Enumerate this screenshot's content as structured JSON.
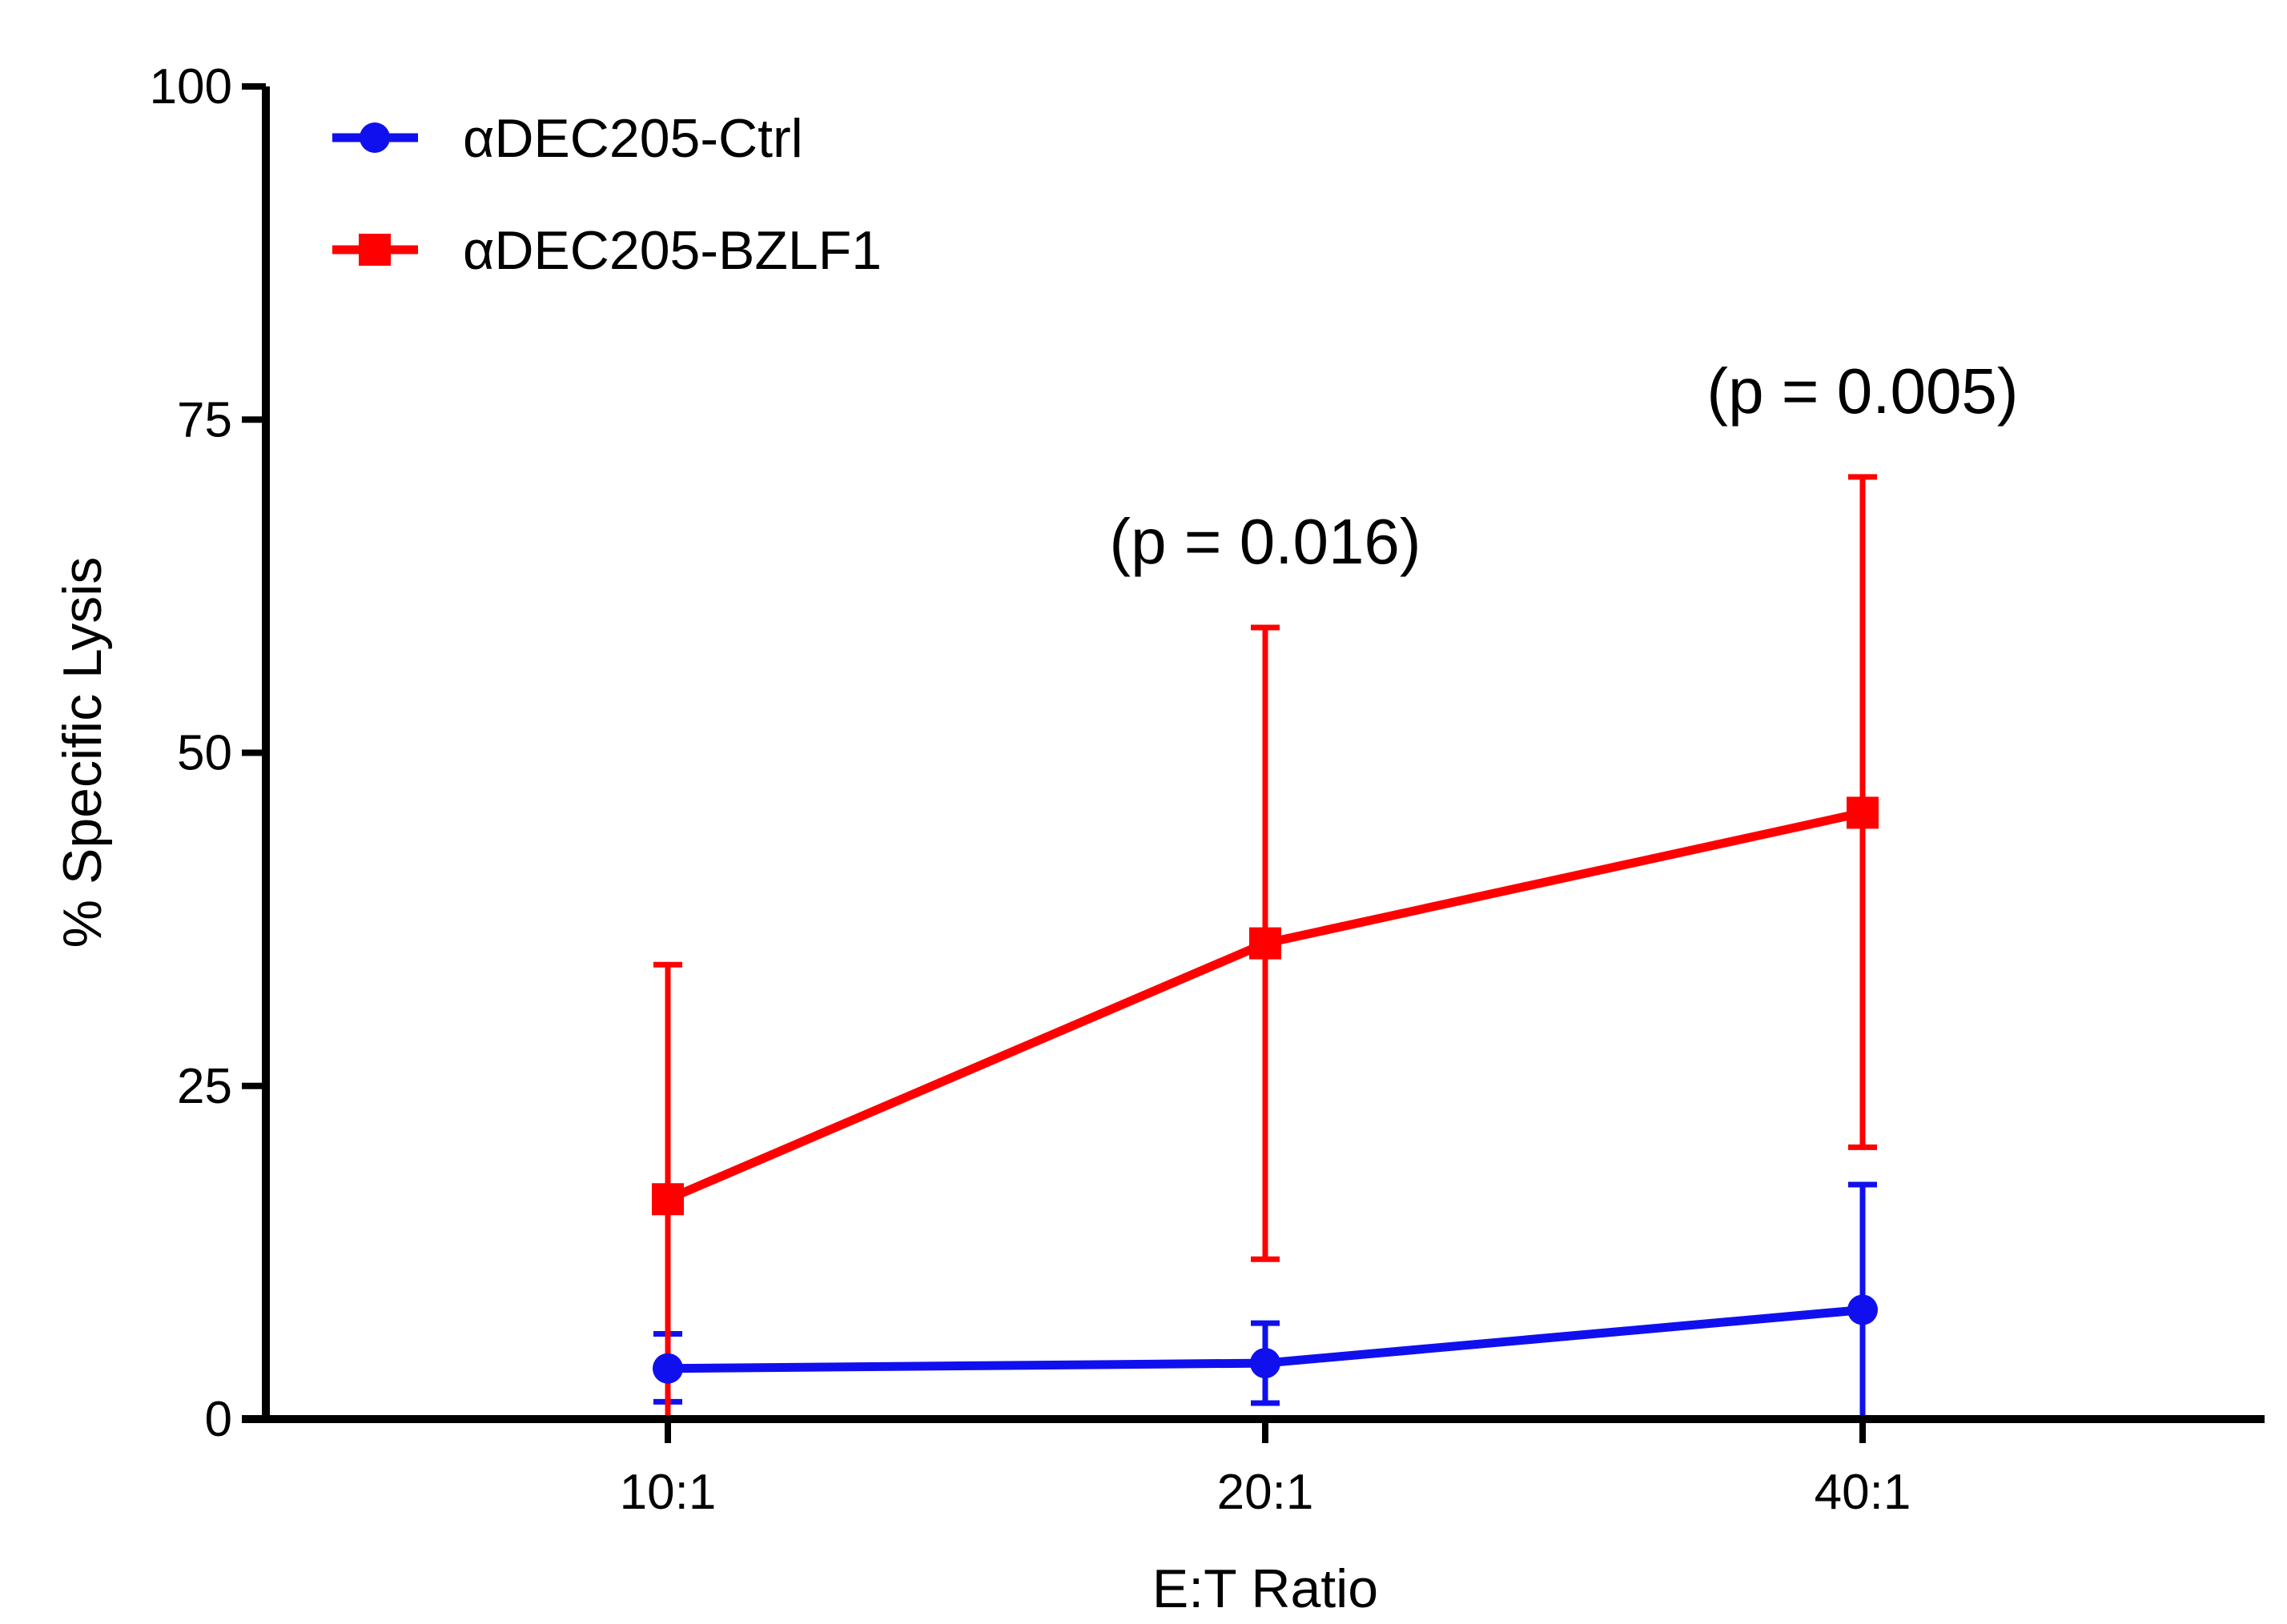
{
  "chart_data": {
    "type": "line",
    "title": "",
    "xlabel": "E:T Ratio",
    "ylabel": "% Specific Lysis",
    "categories": [
      "10:1",
      "20:1",
      "40:1"
    ],
    "ylim": [
      0,
      100
    ],
    "yticks": [
      "0",
      "25",
      "50",
      "75",
      "100"
    ],
    "legend_position": "top-left",
    "series": [
      {
        "name": "αDEC205-Ctrl",
        "color": "#1010ee",
        "marker": "circle",
        "values": [
          3.8,
          4.2,
          8.2
        ],
        "err_low": [
          1.3,
          1.2,
          0.0
        ],
        "err_high": [
          6.4,
          7.2,
          17.6
        ]
      },
      {
        "name": "αDEC205-BZLF1",
        "color": "#ff0000",
        "marker": "square",
        "values": [
          16.5,
          35.7,
          45.5
        ],
        "err_low": [
          0.0,
          12.0,
          20.4
        ],
        "err_high": [
          34.1,
          59.4,
          70.7
        ]
      }
    ],
    "annotations": [
      {
        "category": "20:1",
        "text": "(p = 0.016)"
      },
      {
        "category": "40:1",
        "text": "(p = 0.005)"
      }
    ]
  }
}
